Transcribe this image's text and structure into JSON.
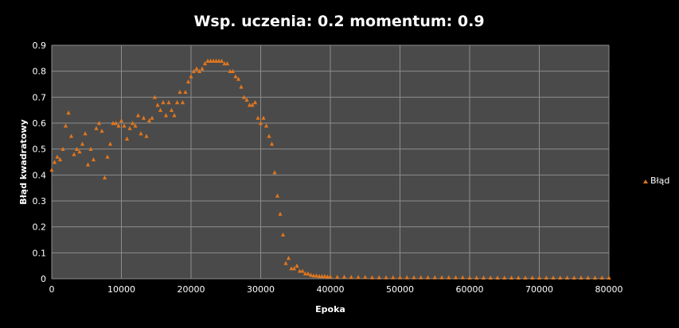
{
  "chart_data": {
    "type": "scatter",
    "title": "Wsp. uczenia: 0.2 momentum: 0.9",
    "xlabel": "Epoka",
    "ylabel": "Błąd kwadratowy",
    "xlim": [
      0,
      80000
    ],
    "ylim": [
      0,
      0.9
    ],
    "x_ticks": [
      0,
      10000,
      20000,
      30000,
      40000,
      50000,
      60000,
      70000,
      80000
    ],
    "y_ticks": [
      0,
      0.1,
      0.2,
      0.3,
      0.4,
      0.5,
      0.6,
      0.7,
      0.8,
      0.9
    ],
    "grid": true,
    "legend_position": "right",
    "colors": {
      "background": "#000000",
      "plot_background": "#4a4a4a",
      "grid": "#8c8c8c",
      "marker": "#e0761e",
      "text": "#ffffff"
    },
    "series": [
      {
        "name": "Błąd",
        "marker": "triangle",
        "x": [
          0,
          400,
          800,
          1200,
          1600,
          2000,
          2400,
          2800,
          3200,
          3600,
          4000,
          4400,
          4800,
          5200,
          5600,
          6000,
          6400,
          6800,
          7200,
          7600,
          8000,
          8400,
          8800,
          9200,
          9600,
          10000,
          10400,
          10800,
          11200,
          11600,
          12000,
          12400,
          12800,
          13200,
          13600,
          14000,
          14400,
          14800,
          15200,
          15600,
          16000,
          16400,
          16800,
          17200,
          17600,
          18000,
          18400,
          18800,
          19200,
          19600,
          20000,
          20400,
          20800,
          21200,
          21600,
          22000,
          22400,
          22800,
          23200,
          23600,
          24000,
          24400,
          24800,
          25200,
          25600,
          26000,
          26400,
          26800,
          27200,
          27600,
          28000,
          28400,
          28800,
          29200,
          29600,
          30000,
          30400,
          30800,
          31200,
          31600,
          32000,
          32400,
          32800,
          33200,
          33600,
          34000,
          34400,
          34800,
          35200,
          35600,
          36000,
          36400,
          36800,
          37200,
          37600,
          38000,
          38400,
          38800,
          39200,
          39600,
          40000,
          41000,
          42000,
          43000,
          44000,
          45000,
          46000,
          47000,
          48000,
          49000,
          50000,
          51000,
          52000,
          53000,
          54000,
          55000,
          56000,
          57000,
          58000,
          59000,
          60000,
          61000,
          62000,
          63000,
          64000,
          65000,
          66000,
          67000,
          68000,
          69000,
          70000,
          71000,
          72000,
          73000,
          74000,
          75000,
          76000,
          77000,
          78000,
          79000,
          80000
        ],
        "y": [
          0.42,
          0.45,
          0.47,
          0.46,
          0.5,
          0.59,
          0.64,
          0.55,
          0.48,
          0.5,
          0.49,
          0.52,
          0.56,
          0.44,
          0.5,
          0.46,
          0.58,
          0.6,
          0.57,
          0.39,
          0.47,
          0.52,
          0.6,
          0.6,
          0.59,
          0.61,
          0.59,
          0.54,
          0.58,
          0.6,
          0.59,
          0.63,
          0.56,
          0.62,
          0.55,
          0.61,
          0.62,
          0.7,
          0.67,
          0.65,
          0.68,
          0.63,
          0.68,
          0.65,
          0.63,
          0.68,
          0.72,
          0.68,
          0.72,
          0.76,
          0.78,
          0.8,
          0.81,
          0.8,
          0.81,
          0.83,
          0.84,
          0.84,
          0.84,
          0.84,
          0.84,
          0.84,
          0.83,
          0.83,
          0.8,
          0.8,
          0.78,
          0.77,
          0.74,
          0.7,
          0.69,
          0.67,
          0.67,
          0.68,
          0.62,
          0.6,
          0.62,
          0.59,
          0.55,
          0.52,
          0.41,
          0.32,
          0.25,
          0.17,
          0.06,
          0.08,
          0.04,
          0.04,
          0.05,
          0.03,
          0.03,
          0.02,
          0.02,
          0.015,
          0.012,
          0.012,
          0.01,
          0.01,
          0.01,
          0.008,
          0.008,
          0.007,
          0.007,
          0.006,
          0.006,
          0.006,
          0.005,
          0.005,
          0.005,
          0.005,
          0.005,
          0.005,
          0.005,
          0.005,
          0.005,
          0.005,
          0.005,
          0.005,
          0.005,
          0.005,
          0.004,
          0.004,
          0.004,
          0.004,
          0.004,
          0.004,
          0.004,
          0.004,
          0.004,
          0.004,
          0.004,
          0.004,
          0.004,
          0.004,
          0.004,
          0.004,
          0.004,
          0.004,
          0.004,
          0.004,
          0.004
        ]
      }
    ]
  }
}
